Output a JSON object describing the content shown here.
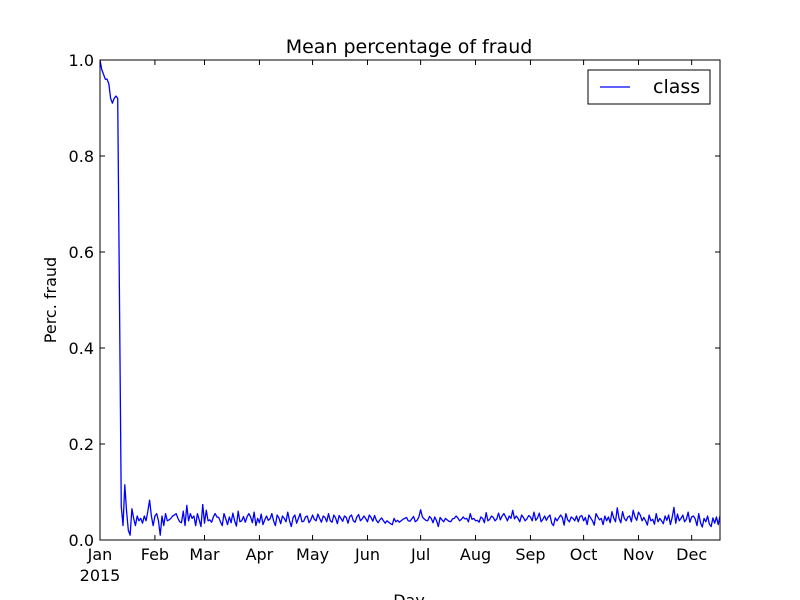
{
  "chart_data": {
    "type": "line",
    "title": "Mean percentage of fraud",
    "xlabel": "Day",
    "ylabel": "Perc. fraud",
    "x_start": "2015-01-01",
    "x_end": "2015-12-17",
    "xlim": [
      "2015-01-01",
      "2015-12-17"
    ],
    "ylim": [
      0,
      1
    ],
    "grid": false,
    "legend": {
      "placement": "top-right",
      "entries": [
        "class"
      ]
    },
    "x_ticks": [
      {
        "date": "2015-01-01",
        "label": "Jan",
        "sublabel": "2015"
      },
      {
        "date": "2015-02-01",
        "label": "Feb",
        "sublabel": ""
      },
      {
        "date": "2015-03-01",
        "label": "Mar",
        "sublabel": ""
      },
      {
        "date": "2015-04-01",
        "label": "Apr",
        "sublabel": ""
      },
      {
        "date": "2015-05-01",
        "label": "May",
        "sublabel": ""
      },
      {
        "date": "2015-06-01",
        "label": "Jun",
        "sublabel": ""
      },
      {
        "date": "2015-07-01",
        "label": "Jul",
        "sublabel": ""
      },
      {
        "date": "2015-08-01",
        "label": "Aug",
        "sublabel": ""
      },
      {
        "date": "2015-09-01",
        "label": "Sep",
        "sublabel": ""
      },
      {
        "date": "2015-10-01",
        "label": "Oct",
        "sublabel": ""
      },
      {
        "date": "2015-11-01",
        "label": "Nov",
        "sublabel": ""
      },
      {
        "date": "2015-12-01",
        "label": "Dec",
        "sublabel": ""
      }
    ],
    "y_ticks": [
      {
        "value": 0.0,
        "label": "0.0"
      },
      {
        "value": 0.2,
        "label": "0.2"
      },
      {
        "value": 0.4,
        "label": "0.4"
      },
      {
        "value": 0.6,
        "label": "0.6"
      },
      {
        "value": 0.8,
        "label": "0.8"
      },
      {
        "value": 1.0,
        "label": "1.0"
      }
    ],
    "series": [
      {
        "name": "class",
        "color": "#0000ff",
        "values": [
          1.0,
          0.98,
          0.97,
          0.96,
          0.96,
          0.95,
          0.92,
          0.91,
          0.92,
          0.925,
          0.92,
          0.5,
          0.07,
          0.03,
          0.115,
          0.06,
          0.02,
          0.01,
          0.065,
          0.045,
          0.03,
          0.05,
          0.04,
          0.045,
          0.035,
          0.05,
          0.04,
          0.06,
          0.083,
          0.05,
          0.03,
          0.05,
          0.055,
          0.04,
          0.01,
          0.05,
          0.03,
          0.055,
          0.04,
          0.042,
          0.045,
          0.05,
          0.052,
          0.055,
          0.045,
          0.038,
          0.036,
          0.06,
          0.03,
          0.072,
          0.04,
          0.055,
          0.045,
          0.05,
          0.03,
          0.055,
          0.042,
          0.028,
          0.074,
          0.035,
          0.062,
          0.04,
          0.042,
          0.037,
          0.048,
          0.055,
          0.048,
          0.047,
          0.038,
          0.03,
          0.055,
          0.044,
          0.032,
          0.048,
          0.036,
          0.056,
          0.04,
          0.029,
          0.06,
          0.038,
          0.04,
          0.049,
          0.037,
          0.048,
          0.055,
          0.048,
          0.036,
          0.058,
          0.03,
          0.045,
          0.036,
          0.054,
          0.032,
          0.042,
          0.05,
          0.041,
          0.044,
          0.055,
          0.04,
          0.03,
          0.052,
          0.046,
          0.034,
          0.05,
          0.045,
          0.038,
          0.058,
          0.04,
          0.028,
          0.047,
          0.052,
          0.035,
          0.045,
          0.055,
          0.038,
          0.039,
          0.048,
          0.05,
          0.036,
          0.042,
          0.052,
          0.043,
          0.04,
          0.054,
          0.045,
          0.037,
          0.05,
          0.047,
          0.038,
          0.055,
          0.04,
          0.037,
          0.052,
          0.046,
          0.034,
          0.051,
          0.045,
          0.039,
          0.05,
          0.047,
          0.035,
          0.049,
          0.052,
          0.04,
          0.037,
          0.048,
          0.053,
          0.04,
          0.044,
          0.05,
          0.045,
          0.038,
          0.052,
          0.047,
          0.039,
          0.051,
          0.041,
          0.036,
          0.042,
          0.046,
          0.04,
          0.035,
          0.04,
          0.037,
          0.034,
          0.032,
          0.045,
          0.038,
          0.041,
          0.037,
          0.04,
          0.043,
          0.045,
          0.047,
          0.04,
          0.039,
          0.044,
          0.049,
          0.038,
          0.041,
          0.048,
          0.063,
          0.048,
          0.044,
          0.041,
          0.04,
          0.049,
          0.045,
          0.036,
          0.048,
          0.04,
          0.028,
          0.047,
          0.042,
          0.038,
          0.045,
          0.042,
          0.039,
          0.038,
          0.044,
          0.045,
          0.05,
          0.046,
          0.04,
          0.043,
          0.048,
          0.044,
          0.045,
          0.038,
          0.055,
          0.043,
          0.045,
          0.04,
          0.041,
          0.037,
          0.048,
          0.045,
          0.036,
          0.057,
          0.04,
          0.043,
          0.05,
          0.047,
          0.04,
          0.044,
          0.056,
          0.042,
          0.05,
          0.055,
          0.048,
          0.04,
          0.05,
          0.045,
          0.062,
          0.044,
          0.05,
          0.045,
          0.038,
          0.052,
          0.047,
          0.04,
          0.044,
          0.051,
          0.048,
          0.04,
          0.058,
          0.041,
          0.046,
          0.056,
          0.038,
          0.043,
          0.05,
          0.041,
          0.048,
          0.052,
          0.035,
          0.03,
          0.046,
          0.04,
          0.046,
          0.052,
          0.047,
          0.031,
          0.055,
          0.042,
          0.038,
          0.048,
          0.045,
          0.04,
          0.05,
          0.038,
          0.049,
          0.051,
          0.04,
          0.047,
          0.032,
          0.052,
          0.046,
          0.04,
          0.031,
          0.055,
          0.048,
          0.042,
          0.045,
          0.032,
          0.05,
          0.04,
          0.048,
          0.036,
          0.059,
          0.046,
          0.038,
          0.067,
          0.045,
          0.036,
          0.059,
          0.045,
          0.04,
          0.048,
          0.05,
          0.038,
          0.062,
          0.048,
          0.041,
          0.058,
          0.052,
          0.04,
          0.047,
          0.04,
          0.031,
          0.052,
          0.04,
          0.043,
          0.033,
          0.055,
          0.038,
          0.045,
          0.04,
          0.034,
          0.05,
          0.041,
          0.052,
          0.032,
          0.047,
          0.068,
          0.035,
          0.054,
          0.04,
          0.045,
          0.052,
          0.038,
          0.043,
          0.058,
          0.037,
          0.048,
          0.05,
          0.044,
          0.03,
          0.055,
          0.036,
          0.027,
          0.045,
          0.038,
          0.05,
          0.033,
          0.028,
          0.046,
          0.035,
          0.048,
          0.032,
          0.05,
          0.038,
          0.042,
          0.035,
          0.055,
          0.04,
          0.028,
          0.04,
          0.048,
          0.044,
          0.038,
          0.055,
          0.04,
          0.075,
          0.03,
          0.052,
          0.045,
          0.034,
          0.083,
          0.03,
          0.052,
          0.07,
          0.055,
          0.03,
          0.045,
          0.04,
          0.08,
          0.03,
          0.06,
          0.02,
          0.04,
          0.075,
          0.01,
          0.08,
          0.082,
          0.03,
          0.01,
          0.07,
          0.082,
          0.06,
          0.03,
          0.01,
          0.0,
          0.085,
          0.04,
          0.05,
          0.115,
          0.113,
          0.03,
          0.0,
          0.07,
          0.0
        ]
      }
    ]
  }
}
